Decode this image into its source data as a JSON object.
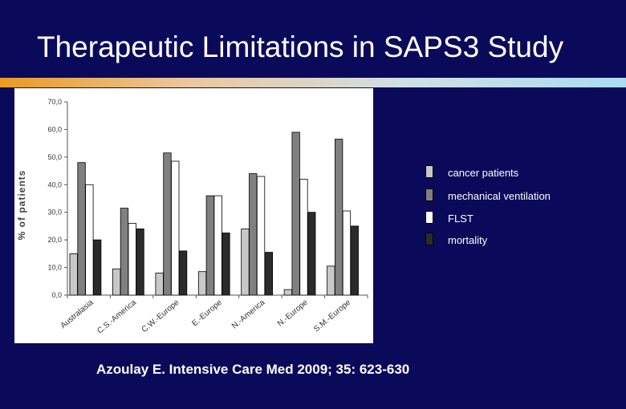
{
  "slide": {
    "title": "Therapeutic Limitations in SAPS3 Study",
    "citation": "Azoulay E. Intensive Care Med 2009; 35: 623-630"
  },
  "chart_data": {
    "type": "bar",
    "ylabel": "% of patients",
    "ylim": [
      0,
      70
    ],
    "yticks": [
      "0,0",
      "10,0",
      "20,0",
      "30,0",
      "40,0",
      "50,0",
      "60,0",
      "70,0"
    ],
    "categories": [
      "Australasia",
      "C.S.-America",
      "C.W.-Europe",
      "E.-Europe",
      "N.-America",
      "N.-Europe",
      "S.M.-Europe"
    ],
    "series": [
      {
        "name": "cancer patients",
        "color": "#c8c8c8",
        "values": [
          15,
          9.5,
          8,
          8.5,
          24,
          2,
          10.5
        ]
      },
      {
        "name": "mechanical ventilation",
        "color": "#808080",
        "values": [
          48,
          31.5,
          51.5,
          36,
          44,
          59,
          56.5
        ]
      },
      {
        "name": "FLST",
        "color": "#ffffff",
        "values": [
          40,
          26,
          48.5,
          36,
          43,
          42,
          30.5
        ]
      },
      {
        "name": "mortality",
        "color": "#2b2b2b",
        "values": [
          20,
          24,
          16,
          22.5,
          15.5,
          30,
          25
        ]
      }
    ],
    "legend_position": "right",
    "grid": false
  }
}
